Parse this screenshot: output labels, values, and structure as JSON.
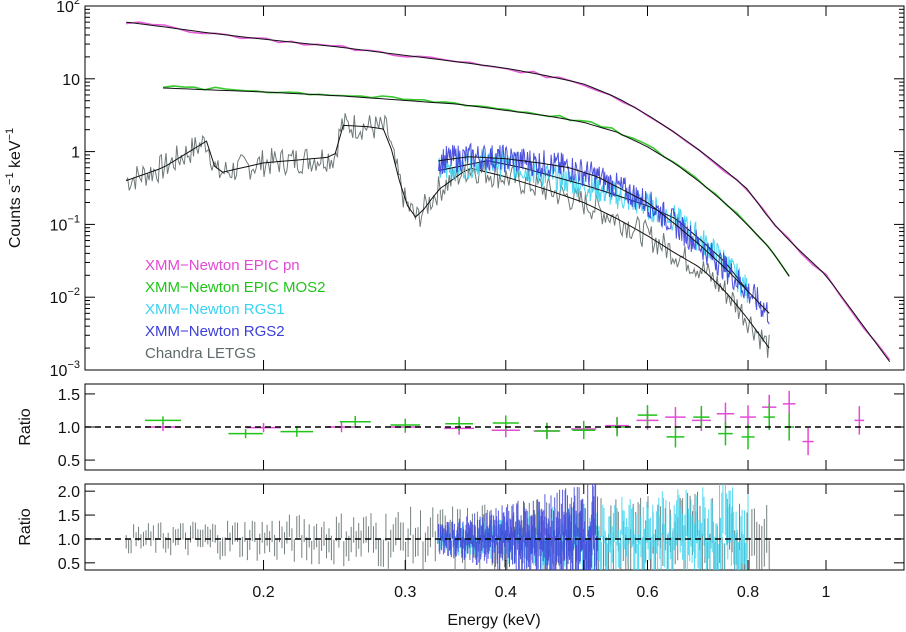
{
  "chart_data": [
    {
      "type": "line",
      "panel": "spectrum",
      "xscale": "log",
      "yscale": "log",
      "xlim": [
        0.12,
        1.25
      ],
      "ylim": [
        0.001,
        100
      ],
      "ylabel_main": "Counts s",
      "ylabel_sup1": "−1",
      "ylabel_mid": " keV",
      "ylabel_sup2": "−1",
      "yticks": [
        {
          "value": 100,
          "base": "10",
          "exp": "2"
        },
        {
          "value": 10,
          "base": "10",
          "exp": ""
        },
        {
          "value": 1,
          "base": "1",
          "exp": ""
        },
        {
          "value": 0.1,
          "base": "10",
          "exp": "−1"
        },
        {
          "value": 0.01,
          "base": "10",
          "exp": "−2"
        },
        {
          "value": 0.001,
          "base": "10",
          "exp": "−3"
        }
      ],
      "legend": [
        {
          "name": "XMM−Newton EPIC pn",
          "color": "#e34ad6"
        },
        {
          "name": "XMM−Newton EPIC MOS2",
          "color": "#22c41a"
        },
        {
          "name": "XMM−Newton RGS1",
          "color": "#38d3f0"
        },
        {
          "name": "XMM−Newton RGS2",
          "color": "#3b3fd8"
        },
        {
          "name": "Chandra LETGS",
          "color": "#5f6a6a"
        }
      ],
      "series": [
        {
          "name": "XMM−Newton EPIC pn",
          "color": "#e34ad6",
          "x": [
            0.135,
            0.15,
            0.17,
            0.2,
            0.25,
            0.3,
            0.35,
            0.4,
            0.45,
            0.5,
            0.55,
            0.6,
            0.65,
            0.7,
            0.75,
            0.8,
            0.85,
            0.9,
            1.0,
            1.2
          ],
          "y": [
            60,
            52,
            43,
            35,
            27,
            21,
            17,
            14,
            11,
            8.5,
            5.5,
            3.2,
            1.8,
            1.0,
            0.55,
            0.3,
            0.12,
            0.06,
            0.02,
            0.0013
          ]
        },
        {
          "name": "XMM−Newton EPIC MOS2",
          "color": "#22c41a",
          "x": [
            0.15,
            0.2,
            0.25,
            0.3,
            0.35,
            0.4,
            0.45,
            0.5,
            0.55,
            0.6,
            0.65,
            0.7,
            0.75,
            0.8,
            0.85,
            0.9
          ],
          "y": [
            7.7,
            6.8,
            6.0,
            5.2,
            4.6,
            3.8,
            3.2,
            2.6,
            1.9,
            1.2,
            0.7,
            0.38,
            0.2,
            0.1,
            0.05,
            0.02
          ]
        },
        {
          "name": "XMM−Newton RGS1",
          "color": "#38d3f0",
          "x": [
            0.33,
            0.38,
            0.42,
            0.46,
            0.5,
            0.55,
            0.6,
            0.65,
            0.7,
            0.75,
            0.8
          ],
          "y": [
            0.55,
            0.75,
            0.6,
            0.45,
            0.35,
            0.25,
            0.18,
            0.12,
            0.06,
            0.03,
            0.012
          ]
        },
        {
          "name": "XMM−Newton RGS2",
          "color": "#3b3fd8",
          "x": [
            0.33,
            0.36,
            0.4,
            0.44,
            0.48,
            0.52,
            0.6,
            0.65,
            0.7,
            0.75,
            0.8,
            0.85
          ],
          "y": [
            0.75,
            0.85,
            0.8,
            0.7,
            0.6,
            0.45,
            0.2,
            0.1,
            0.05,
            0.025,
            0.012,
            0.006
          ]
        },
        {
          "name": "Chandra LETGS",
          "color": "#5f6a6a",
          "x": [
            0.135,
            0.15,
            0.17,
            0.175,
            0.2,
            0.23,
            0.245,
            0.25,
            0.27,
            0.285,
            0.29,
            0.3,
            0.31,
            0.33,
            0.36,
            0.4,
            0.45,
            0.5,
            0.55,
            0.6,
            0.65,
            0.7,
            0.75,
            0.8,
            0.85
          ],
          "y": [
            0.4,
            0.6,
            1.4,
            0.5,
            0.7,
            0.8,
            0.85,
            2.3,
            2.2,
            2.0,
            0.8,
            0.2,
            0.12,
            0.3,
            0.6,
            0.45,
            0.3,
            0.2,
            0.12,
            0.07,
            0.04,
            0.025,
            0.012,
            0.005,
            0.002
          ]
        }
      ]
    },
    {
      "type": "scatter",
      "panel": "ratio-xmm",
      "xscale": "log",
      "xlim": [
        0.12,
        1.25
      ],
      "ylim": [
        0.35,
        1.65
      ],
      "ylabel": "Ratio",
      "yticks": [
        "0.5",
        "1.0",
        "1.5"
      ],
      "ytick_values": [
        0.5,
        1.0,
        1.5
      ],
      "reference_line": 1.0,
      "series": [
        {
          "name": "XMM−Newton EPIC pn",
          "color": "#e34ad6",
          "x": [
            0.15,
            0.2,
            0.25,
            0.3,
            0.35,
            0.4,
            0.45,
            0.5,
            0.55,
            0.6,
            0.65,
            0.7,
            0.75,
            0.8,
            0.85,
            0.9,
            0.95,
            1.1
          ],
          "y": [
            1.0,
            0.99,
            1.0,
            1.0,
            0.98,
            0.95,
            0.94,
            0.97,
            1.02,
            1.1,
            1.15,
            1.1,
            1.2,
            1.15,
            1.3,
            1.35,
            0.78,
            1.1
          ]
        },
        {
          "name": "XMM−Newton EPIC MOS2",
          "color": "#22c41a",
          "x": [
            0.15,
            0.19,
            0.22,
            0.26,
            0.3,
            0.35,
            0.4,
            0.45,
            0.5,
            0.55,
            0.6,
            0.65,
            0.7,
            0.75,
            0.8,
            0.85,
            0.9
          ],
          "y": [
            1.1,
            0.9,
            0.93,
            1.08,
            1.03,
            1.05,
            1.06,
            0.94,
            0.95,
            1.0,
            1.18,
            0.85,
            1.15,
            0.9,
            0.85,
            1.15,
            1.0
          ]
        }
      ]
    },
    {
      "type": "scatter",
      "panel": "ratio-grating",
      "xscale": "log",
      "xlim": [
        0.12,
        1.25
      ],
      "ylim": [
        0.35,
        2.15
      ],
      "ylabel": "Ratio",
      "yticks": [
        "0.5",
        "1.0",
        "1.5",
        "2.0"
      ],
      "ytick_values": [
        0.5,
        1.0,
        1.5,
        2.0
      ],
      "reference_line": 1.0,
      "xlabel": "Energy (keV)",
      "xticks": [
        "0.2",
        "0.3",
        "0.4",
        "0.5",
        "0.6",
        "0.8",
        "1"
      ],
      "xtick_values": [
        0.2,
        0.3,
        0.4,
        0.5,
        0.6,
        0.8,
        1.0
      ],
      "series": [
        {
          "name": "Chandra LETGS",
          "color": "#5f6a6a",
          "x_range": [
            0.135,
            0.85
          ],
          "y": [
            1.0
          ]
        },
        {
          "name": "XMM−Newton RGS1",
          "color": "#38d3f0",
          "x_range": [
            0.33,
            0.8
          ],
          "y": [
            1.0
          ]
        },
        {
          "name": "XMM−Newton RGS2",
          "color": "#3b3fd8",
          "x_range": [
            0.33,
            0.52
          ],
          "y": [
            1.0
          ]
        }
      ]
    }
  ]
}
